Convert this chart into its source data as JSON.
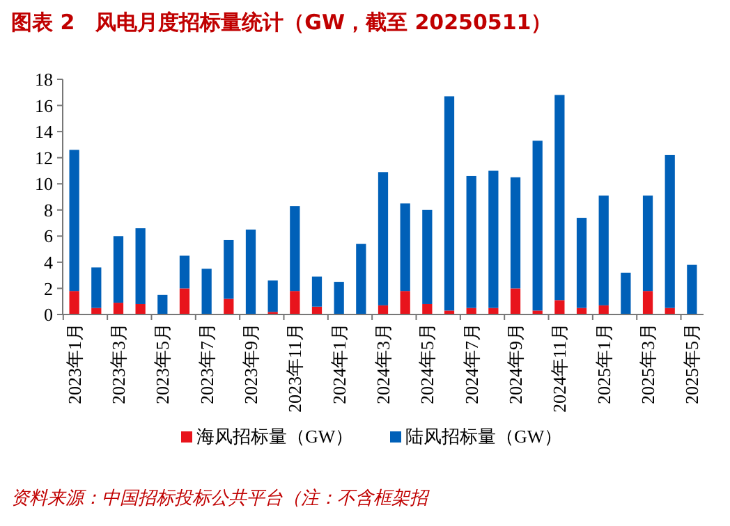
{
  "chart_data": {
    "type": "bar",
    "title": "图表 2　风电月度招标量统计（GW，截至 20250511）",
    "categories": [
      "2023年1月",
      null,
      "2023年3月",
      null,
      "2023年5月",
      null,
      "2023年7月",
      null,
      "2023年9月",
      null,
      "2023年11月",
      null,
      "2024年1月",
      null,
      "2024年3月",
      null,
      "2024年5月",
      null,
      "2024年7月",
      null,
      "2024年9月",
      null,
      "2024年11月",
      null,
      "2025年1月",
      null,
      "2025年3月",
      null,
      "2025年5月"
    ],
    "series": [
      {
        "name": "海风招标量（GW）",
        "color": "#e8141c",
        "values": [
          1.8,
          0.5,
          0.9,
          0.8,
          0,
          2.0,
          0,
          1.2,
          0,
          0.2,
          1.8,
          0.6,
          0,
          0,
          0.7,
          1.8,
          0.8,
          0.3,
          0.5,
          0.5,
          2.0,
          0.3,
          1.1,
          0.5,
          0.7,
          0,
          1.8,
          0.5,
          0
        ]
      },
      {
        "name": "陆风招标量（GW）",
        "color": "#0060b8",
        "values": [
          10.8,
          3.1,
          5.1,
          5.8,
          1.5,
          2.5,
          3.5,
          4.5,
          6.5,
          2.4,
          6.5,
          2.3,
          2.5,
          5.4,
          10.2,
          6.7,
          7.2,
          16.4,
          10.1,
          10.5,
          8.5,
          13.0,
          15.7,
          6.9,
          8.4,
          3.2,
          7.3,
          11.7,
          3.8
        ]
      }
    ],
    "stacked": true,
    "ylim": [
      0,
      18
    ],
    "yticks": [
      0,
      2,
      4,
      6,
      8,
      10,
      12,
      14,
      16,
      18
    ],
    "grid": false,
    "legend": "bottom",
    "annotations": [
      "资料来源：中国招标投标公共平台（注：不含框架招"
    ]
  }
}
